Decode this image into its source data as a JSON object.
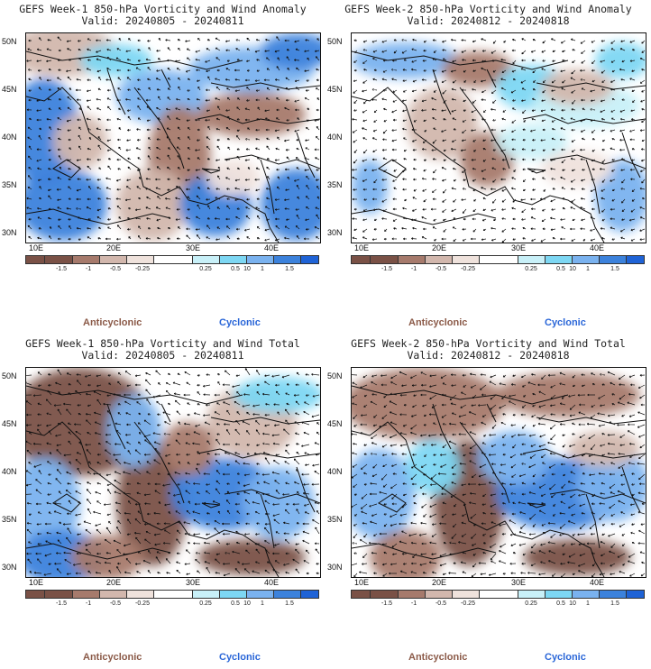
{
  "colors": {
    "anticyclonic_strong": "#7a5146",
    "anticyclonic_mid": "#a67a6c",
    "anticyclonic_weak": "#d2b7ad",
    "anticyclonic_faint": "#efe2dc",
    "neutral": "#ffffff",
    "cyclonic_faint": "#c8f0f8",
    "cyclonic_weak": "#7dd7f3",
    "cyclonic_mid": "#7ab2ef",
    "cyclonic_strong": "#3c82dc",
    "cyclonic_max": "#1f63d6"
  },
  "axes": {
    "lat_labels": [
      "50N",
      "45N",
      "40N",
      "35N",
      "30N"
    ],
    "lon_labels": [
      "10E",
      "20E",
      "30E",
      "40E"
    ]
  },
  "colorbar": {
    "labels": [
      "-1.5",
      "-1",
      "-0.5",
      "-0.25",
      "0.25",
      "0.5",
      "1",
      "1.5"
    ],
    "scale_note": "10"
  },
  "panels": [
    {
      "title_line1": "GEFS Week-1 850-hPa Vorticity and Wind Anomaly",
      "title_line2": "Valid: 20240805 - 20240811",
      "legend_left": "Anticyclonic",
      "legend_right": "Cyclonic"
    },
    {
      "title_line1": "GEFS Week-2 850-hPa Vorticity and Wind Anomaly",
      "title_line2": "Valid: 20240812 - 20240818",
      "legend_left": "Anticyclonic",
      "legend_right": "Cyclonic"
    },
    {
      "title_line1": "GEFS Week-1 850-hPa Vorticity and Wind Total",
      "title_line2": "Valid: 20240805 - 20240811",
      "legend_left": "Anticyclonic",
      "legend_right": "Cyclonic"
    },
    {
      "title_line1": "GEFS Week-2 850-hPa Vorticity and Wind Total",
      "title_line2": "Valid: 20240812 - 20240818",
      "legend_left": "Anticyclonic",
      "legend_right": "Cyclonic"
    }
  ]
}
